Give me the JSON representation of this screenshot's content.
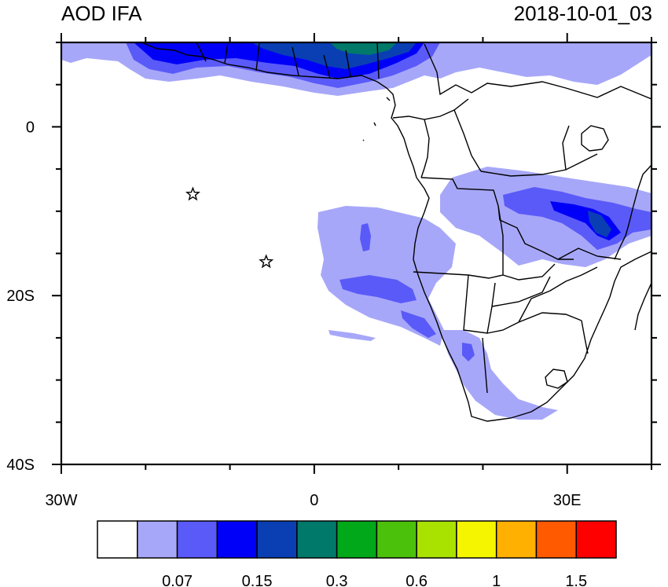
{
  "title_left": "AOD IFA",
  "title_right": "2018-10-01_03",
  "lat_labels": [
    {
      "label": "0",
      "lat": 0
    },
    {
      "label": "20S",
      "lat": -20
    },
    {
      "label": "40S",
      "lat": -40
    }
  ],
  "lon_labels": [
    {
      "label": "30W",
      "lon": -30
    },
    {
      "label": "0",
      "lon": 0
    },
    {
      "label": "30E",
      "lon": 30
    }
  ],
  "extent": {
    "lon_min": -30,
    "lon_max": 40,
    "lat_min": -40,
    "lat_max": 10
  },
  "stars": [
    {
      "name": "star-ascension-like",
      "lon": -14.4,
      "lat": -8.0
    },
    {
      "name": "star-st-helena-like",
      "lon": -5.7,
      "lat": -16.0
    }
  ],
  "colorbar": {
    "colors": [
      "#ffffff",
      "#a7a7f9",
      "#5a5af9",
      "#0000f9",
      "#0a3fb4",
      "#00796b",
      "#00a81a",
      "#4bc10b",
      "#a9e100",
      "#f5f500",
      "#ffb000",
      "#ff5a00",
      "#ff0000"
    ],
    "labels": [
      {
        "text": "0.07",
        "boundary": 2
      },
      {
        "text": "0.15",
        "boundary": 4
      },
      {
        "text": "0.3",
        "boundary": 6
      },
      {
        "text": "0.6",
        "boundary": 8
      },
      {
        "text": "1",
        "boundary": 10
      },
      {
        "text": "1.5",
        "boundary": 12
      }
    ]
  }
}
